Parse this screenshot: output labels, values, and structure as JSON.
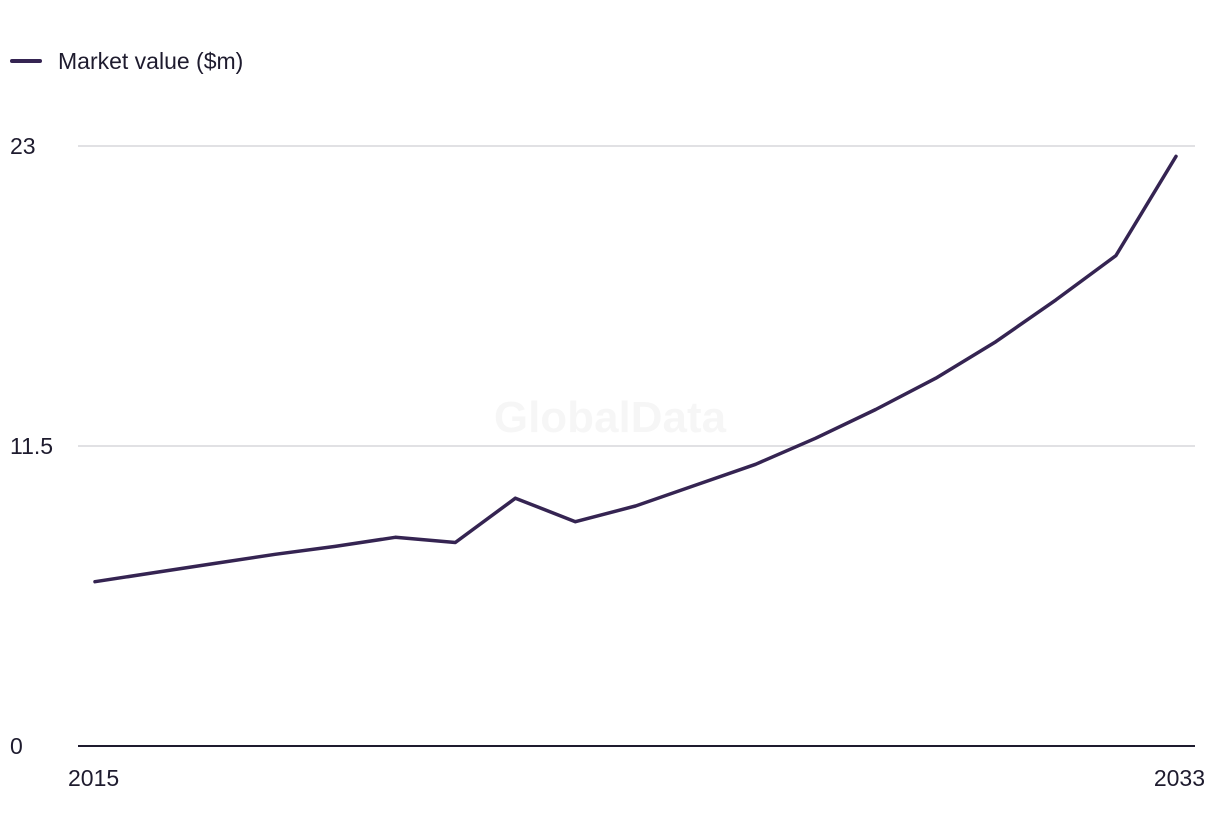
{
  "chart_data": {
    "type": "line",
    "title": "",
    "xlabel": "",
    "ylabel": "",
    "x": [
      2015,
      2016,
      2017,
      2018,
      2019,
      2020,
      2021,
      2022,
      2023,
      2024,
      2025,
      2026,
      2027,
      2028,
      2029,
      2030,
      2031,
      2032,
      2033
    ],
    "series": [
      {
        "name": "Market value ($m)",
        "values": [
          6.3,
          6.65,
          7.0,
          7.35,
          7.65,
          8.0,
          7.8,
          9.5,
          8.6,
          9.2,
          10.0,
          10.8,
          11.8,
          12.9,
          14.1,
          15.5,
          17.1,
          18.8,
          22.6
        ]
      }
    ],
    "ylim": [
      0,
      23
    ],
    "y_ticks": [
      "0",
      "11.5",
      "23"
    ],
    "x_ticks": [
      "2015",
      "2033"
    ],
    "grid": true,
    "legend": "top-left",
    "colors": {
      "line": "#352452",
      "grid": "#d7d7dc",
      "axis": "#1e1b2e"
    }
  },
  "watermark": "GlobalData"
}
